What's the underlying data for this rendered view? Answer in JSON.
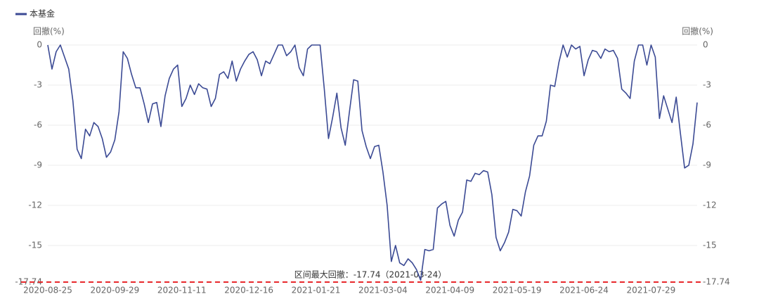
{
  "chart_data": {
    "type": "line",
    "legend_position": "top-left",
    "y_label": "回撤(%)",
    "annotation": "区间最大回撤：-17.74（2021-03-24）",
    "max_drawdown": -17.74,
    "max_drawdown_color": "#e8282b",
    "grid": true,
    "ylim": [
      -17.74,
      0
    ],
    "yticks": [
      0,
      -3,
      -6,
      -9,
      -12,
      -15,
      -17.74
    ],
    "categories": [
      "2020-08-25",
      null,
      null,
      null,
      null,
      null,
      null,
      null,
      null,
      null,
      null,
      null,
      null,
      null,
      null,
      null,
      "2020-09-29",
      null,
      null,
      null,
      null,
      null,
      null,
      null,
      null,
      null,
      null,
      null,
      null,
      null,
      null,
      null,
      "2020-11-11",
      null,
      null,
      null,
      null,
      null,
      null,
      null,
      null,
      null,
      null,
      null,
      null,
      null,
      null,
      null,
      "2020-12-16",
      null,
      null,
      null,
      null,
      null,
      null,
      null,
      null,
      null,
      null,
      null,
      null,
      null,
      null,
      null,
      "2021-01-21",
      null,
      null,
      null,
      null,
      null,
      null,
      null,
      null,
      null,
      null,
      null,
      null,
      null,
      null,
      null,
      "2021-03-04",
      null,
      null,
      null,
      null,
      null,
      null,
      null,
      null,
      null,
      null,
      null,
      null,
      null,
      null,
      null,
      "2021-04-09",
      null,
      null,
      null,
      null,
      null,
      null,
      null,
      null,
      null,
      null,
      null,
      null,
      null,
      null,
      null,
      "2021-05-19",
      null,
      null,
      null,
      null,
      null,
      null,
      null,
      null,
      null,
      null,
      null,
      null,
      null,
      null,
      null,
      "2021-06-24",
      null,
      null,
      null,
      null,
      null,
      null,
      null,
      null,
      null,
      null,
      null,
      null,
      null,
      null,
      null,
      "2021-07-29",
      null,
      null,
      null,
      null,
      null,
      null,
      null,
      null,
      null,
      null,
      null
    ],
    "series": [
      {
        "name": "本基金",
        "color": "#3b4a94",
        "values": [
          0,
          -1.8,
          -0.5,
          0,
          -0.9,
          -1.8,
          -4.2,
          -7.8,
          -8.5,
          -6.3,
          -6.8,
          -5.8,
          -6.1,
          -7,
          -8.4,
          -8,
          -7.1,
          -5,
          -0.5,
          -1,
          -2.2,
          -3.2,
          -3.2,
          -4.4,
          -5.8,
          -4.4,
          -4.3,
          -6.1,
          -3.8,
          -2.5,
          -1.8,
          -1.5,
          -4.6,
          -4,
          -3,
          -3.7,
          -2.9,
          -3.2,
          -3.3,
          -4.6,
          -4,
          -2.2,
          -2,
          -2.5,
          -1.2,
          -2.7,
          -1.8,
          -1.2,
          -0.7,
          -0.5,
          -1.1,
          -2.3,
          -1.2,
          -1.4,
          -0.7,
          0,
          0,
          -0.8,
          -0.5,
          0,
          -1.7,
          -2.3,
          -0.3,
          0,
          0,
          0,
          -3.3,
          -7,
          -5.4,
          -3.6,
          -6.2,
          -7.5,
          -5,
          -2.6,
          -2.7,
          -6.4,
          -7.6,
          -8.5,
          -7.6,
          -7.5,
          -9.5,
          -12,
          -16.2,
          -15,
          -16.3,
          -16.5,
          -16,
          -16.3,
          -16.8,
          -17.6,
          -15.3,
          -15.4,
          -15.3,
          -12.2,
          -11.9,
          -11.7,
          -13.5,
          -14.3,
          -13.1,
          -12.5,
          -10.1,
          -10.2,
          -9.6,
          -9.7,
          -9.4,
          -9.5,
          -11.2,
          -14.4,
          -15.4,
          -14.8,
          -14,
          -12.3,
          -12.4,
          -12.8,
          -11,
          -9.8,
          -7.5,
          -6.8,
          -6.8,
          -5.7,
          -3,
          -3.1,
          -1.3,
          0,
          -0.9,
          0,
          -0.3,
          -0.1,
          -2.3,
          -1.1,
          -0.4,
          -0.5,
          -1,
          -0.3,
          -0.5,
          -0.4,
          -1,
          -3.3,
          -3.6,
          -4,
          -1.2,
          0,
          0,
          -1.5,
          0,
          -0.9,
          -5.5,
          -3.8,
          -4.8,
          -5.8,
          -3.9,
          -6.6,
          -9.2,
          -9,
          -7.4,
          -4.3
        ]
      }
    ]
  }
}
